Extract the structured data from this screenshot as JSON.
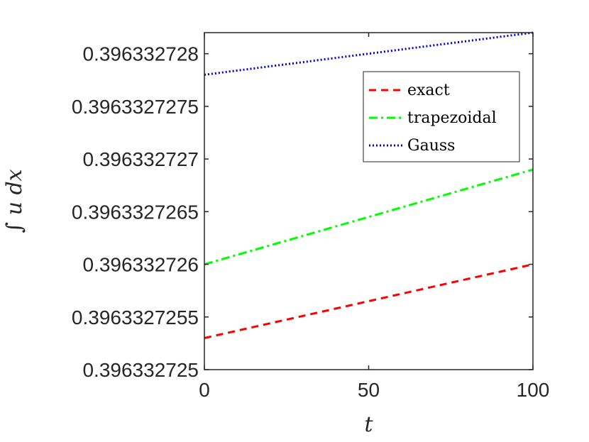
{
  "chart_data": {
    "type": "line",
    "xlabel": "t",
    "ylabel": "∫ u dx",
    "xlim": [
      0,
      100
    ],
    "ylim": [
      0.396332725,
      0.3963327282
    ],
    "x_ticks": [
      0,
      50,
      100
    ],
    "x_tick_labels": [
      "0",
      "50",
      "100"
    ],
    "y_ticks": [
      0.396332725,
      0.3963327255,
      0.396332726,
      0.3963327265,
      0.396332727,
      0.3963327275,
      0.396332728
    ],
    "y_tick_labels": [
      "0.396332725",
      "0.3963327255",
      "0.396332726",
      "0.3963327265",
      "0.396332727",
      "0.3963327275",
      "0.396332728"
    ],
    "grid": false,
    "legend_position": "top-right",
    "x": [
      0,
      10,
      20,
      30,
      40,
      50,
      60,
      70,
      80,
      90,
      100
    ],
    "series": [
      {
        "name": "exact",
        "color": "#ff0000",
        "style": "dashed",
        "values": [
          0.3963327253,
          0.39633272537,
          0.39633272544,
          0.39633272551,
          0.39633272558,
          0.39633272565,
          0.39633272572,
          0.39633272579,
          0.39633272586,
          0.39633272593,
          0.396332726
        ]
      },
      {
        "name": "trapezoidal",
        "color": "#00ff00",
        "style": "dashdot",
        "values": [
          0.396332726,
          0.39633272609,
          0.39633272618,
          0.39633272627,
          0.39633272636,
          0.39633272645,
          0.39633272654,
          0.39633272663,
          0.39633272672,
          0.39633272681,
          0.3963327269
        ]
      },
      {
        "name": "Gauss",
        "color": "#0000cc",
        "style": "dotted",
        "values": [
          0.3963327278,
          0.39633272784,
          0.39633272788,
          0.39633272792,
          0.39633272796,
          0.396332728,
          0.39633272804,
          0.39633272808,
          0.39633272812,
          0.39633272816,
          0.3963327282
        ]
      }
    ]
  }
}
